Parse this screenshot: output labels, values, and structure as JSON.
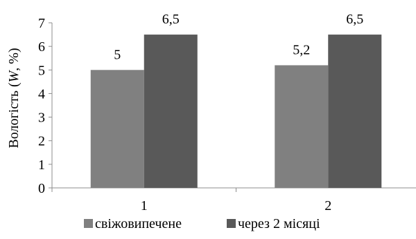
{
  "chart_data": {
    "type": "bar",
    "categories": [
      "1",
      "2"
    ],
    "series": [
      {
        "name": "свіжовипечене",
        "values": [
          5,
          5.2
        ],
        "labels": [
          "5",
          "5,2"
        ],
        "color": "#808080"
      },
      {
        "name": "через 2 місяці",
        "values": [
          6.5,
          6.5
        ],
        "labels": [
          "6,5",
          "6,5"
        ],
        "color": "#595959"
      }
    ],
    "ylabel_prefix": "Вологість (",
    "ylabel_var": "W",
    "ylabel_suffix": ", %)",
    "xlabel": "",
    "ylim": [
      0,
      7
    ],
    "yticks": [
      "0",
      "1",
      "2",
      "3",
      "4",
      "5",
      "6",
      "7"
    ],
    "grid": false,
    "legend_position": "bottom"
  }
}
